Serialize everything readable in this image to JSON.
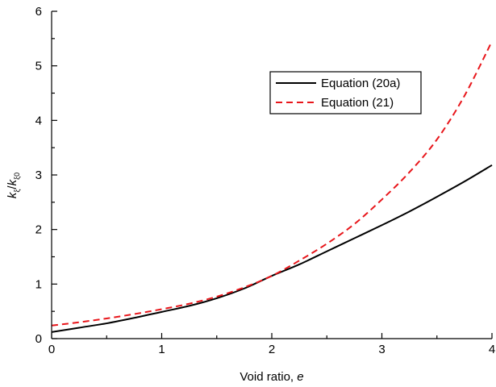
{
  "chart_data": {
    "type": "line",
    "title": "",
    "xlabel_prefix": "Void ratio, ",
    "xlabel_var": "e",
    "ylabel": {
      "k1": "k",
      "sub1": "ξ",
      "slash": "/",
      "k2": "k",
      "sub2": "ξ0"
    },
    "xlim": [
      0,
      4
    ],
    "ylim": [
      0,
      6
    ],
    "x_ticks": [
      "0",
      "1",
      "2",
      "3",
      "4"
    ],
    "y_ticks": [
      "0",
      "1",
      "2",
      "3",
      "4",
      "5",
      "6"
    ],
    "grid": false,
    "legend_position": "top-right",
    "series": [
      {
        "name": "Equation (20a)",
        "color": "#000000",
        "dash": "solid",
        "x": [
          0,
          0.25,
          0.5,
          0.75,
          1.0,
          1.25,
          1.5,
          1.75,
          2.0,
          2.25,
          2.5,
          2.75,
          3.0,
          3.25,
          3.5,
          3.75,
          4.0
        ],
        "y": [
          0.12,
          0.2,
          0.28,
          0.38,
          0.49,
          0.6,
          0.74,
          0.92,
          1.15,
          1.36,
          1.6,
          1.84,
          2.08,
          2.33,
          2.6,
          2.88,
          3.18
        ]
      },
      {
        "name": "Equation (21)",
        "color": "#e8161b",
        "dash": "dashed",
        "x": [
          0,
          0.25,
          0.5,
          0.75,
          1.0,
          1.25,
          1.5,
          1.75,
          2.0,
          2.25,
          2.5,
          2.75,
          3.0,
          3.25,
          3.5,
          3.75,
          4.0
        ],
        "y": [
          0.24,
          0.3,
          0.37,
          0.45,
          0.54,
          0.64,
          0.77,
          0.94,
          1.15,
          1.43,
          1.74,
          2.1,
          2.55,
          3.05,
          3.65,
          4.45,
          5.45
        ]
      }
    ]
  }
}
